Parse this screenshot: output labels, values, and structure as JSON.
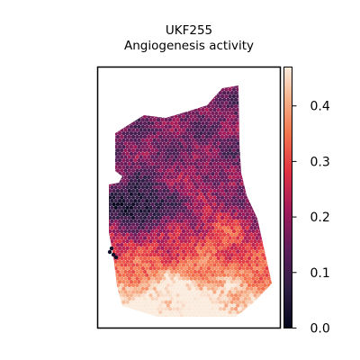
{
  "chart_data": {
    "type": "heatmap",
    "title": "UKF255",
    "subtitle": "Angiogenesis activity",
    "xlabel": "",
    "ylabel": "",
    "colorbar": {
      "range": [
        0.0,
        0.47
      ],
      "ticks": [
        0.0,
        0.1,
        0.2,
        0.3,
        0.4
      ],
      "tick_labels": [
        "0.0",
        "0.1",
        "0.2",
        "0.3",
        "0.4"
      ],
      "colormap": "rocket"
    },
    "grid": false,
    "legend": "colorbar-right",
    "spot_activity_summary": {
      "upper_lobes": "mostly 0.10-0.25",
      "left_middle_region": "mostly 0.00-0.10",
      "lower_region": "mostly 0.30-0.45"
    }
  }
}
